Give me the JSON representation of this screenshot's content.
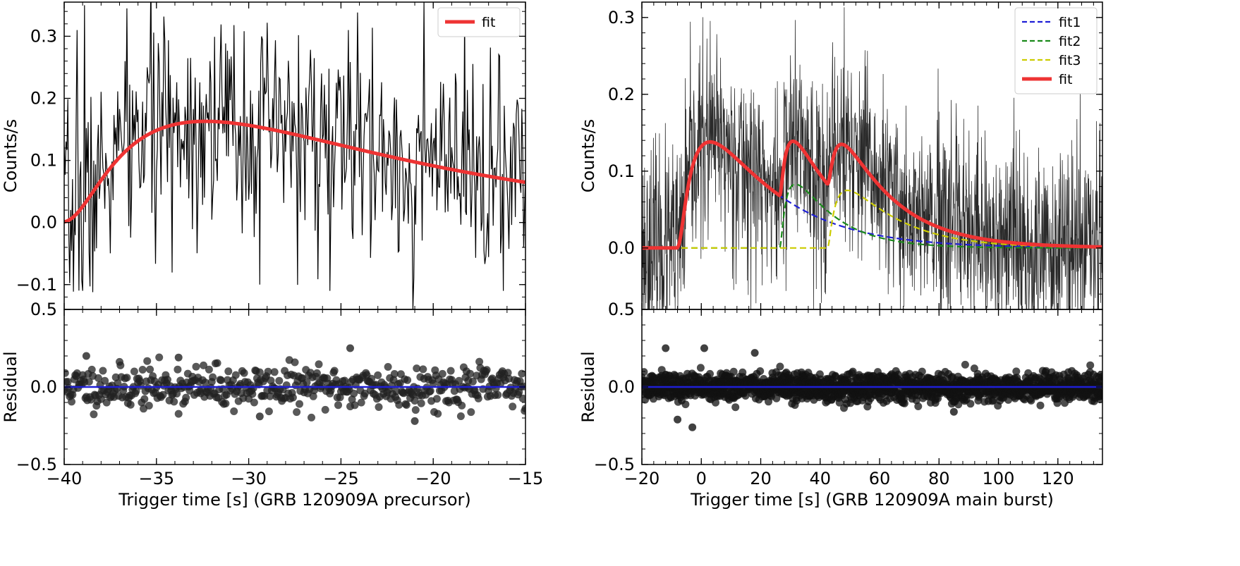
{
  "chart_data": [
    {
      "type": "line",
      "panel": "left-top",
      "ylabel": "Counts/s",
      "xlim": [
        -40,
        -15
      ],
      "ylim": [
        -0.14,
        0.355
      ],
      "yticks": [
        -0.1,
        0.0,
        0.1,
        0.2,
        0.3
      ],
      "ytick_labels": [
        "−0.1",
        "0.0",
        "0.1",
        "0.2",
        "0.3"
      ],
      "legend": {
        "position": "top-right",
        "entries": [
          {
            "label": "fit",
            "color": "#ee3333",
            "style": "solid"
          }
        ]
      },
      "noise": {
        "color": "#000000",
        "x_start": -40,
        "x_end": -15,
        "step": 0.05,
        "seed": 7,
        "sigma": 0.085
      },
      "spikes": [
        {
          "x": -39.3,
          "y": 0.31
        },
        {
          "x": -38.9,
          "y": 0.35
        },
        {
          "x": -36.7,
          "y": 0.26
        },
        {
          "x": -35.5,
          "y": 0.25
        },
        {
          "x": -32.1,
          "y": 0.26
        },
        {
          "x": -24.6,
          "y": 0.31
        },
        {
          "x": -39.0,
          "y": -0.11
        },
        {
          "x": -29.4,
          "y": -0.1
        },
        {
          "x": -25.6,
          "y": -0.11
        },
        {
          "x": -21.1,
          "y": -0.14
        },
        {
          "x": -16.2,
          "y": -0.11
        }
      ],
      "series": [
        {
          "name": "fit",
          "color": "#ee3333",
          "model": "pulse",
          "components": [
            {
              "A": 0.163,
              "t0": -40.9,
              "rise": 5.8,
              "decay": 12.6
            }
          ]
        }
      ]
    },
    {
      "type": "scatter",
      "panel": "left-bottom",
      "ylabel": "Residual",
      "xlabel": "Trigger time [s] (GRB 120909A precursor)",
      "xlim": [
        -40,
        -15
      ],
      "ylim": [
        -0.5,
        0.5
      ],
      "yticks": [
        -0.5,
        0.0,
        0.5
      ],
      "ytick_labels": [
        "−0.5",
        "0.0",
        "0.5"
      ],
      "xticks": [
        -40,
        -35,
        -30,
        -25,
        -20,
        -15
      ],
      "xtick_labels": [
        "−40",
        "−35",
        "−30",
        "−25",
        "−20",
        "−15"
      ],
      "zero_line_color": "#1f1fd6",
      "points": {
        "color": "#222222",
        "x_start": -40,
        "x_end": -15,
        "step": 0.05,
        "seed": 11,
        "sigma": 0.07
      },
      "outliers": [
        {
          "x": -38.8,
          "y": 0.2
        },
        {
          "x": -24.5,
          "y": 0.25
        },
        {
          "x": -21.0,
          "y": -0.22
        },
        {
          "x": -29.4,
          "y": -0.19
        },
        {
          "x": -33.8,
          "y": 0.19
        }
      ]
    },
    {
      "type": "line",
      "panel": "right-top",
      "ylabel": "Counts/s",
      "xlim": [
        -20,
        135
      ],
      "ylim": [
        -0.08,
        0.32
      ],
      "yticks": [
        0.0,
        0.1,
        0.2,
        0.3
      ],
      "ytick_labels": [
        "0.0",
        "0.1",
        "0.2",
        "0.3"
      ],
      "legend": {
        "position": "top-right",
        "entries": [
          {
            "label": "fit1",
            "color": "#1f1fd6",
            "style": "dashed"
          },
          {
            "label": "fit2",
            "color": "#1a8a1a",
            "style": "dashed"
          },
          {
            "label": "fit3",
            "color": "#cccc00",
            "style": "dashed"
          },
          {
            "label": "fit",
            "color": "#ee3333",
            "style": "solid"
          }
        ]
      },
      "noise": {
        "color": "#2a2a2a",
        "x_start": -20,
        "x_end": 135,
        "step": 0.1,
        "seed": 23,
        "sigma": 0.065
      },
      "series": [
        {
          "name": "fit1",
          "color": "#1f1fd6",
          "model": "pulse",
          "components": [
            {
              "A": 0.138,
              "t0": -9,
              "rise": 6.5,
              "decay": 22
            }
          ]
        },
        {
          "name": "fit2",
          "color": "#1a8a1a",
          "model": "pulse",
          "components": [
            {
              "A": 0.083,
              "t0": 26,
              "rise": 2.5,
              "decay": 13
            }
          ]
        },
        {
          "name": "fit3",
          "color": "#cccc00",
          "model": "pulse",
          "components": [
            {
              "A": 0.075,
              "t0": 42,
              "rise": 3,
              "decay": 17
            }
          ]
        },
        {
          "name": "fit",
          "color": "#ee3333",
          "model": "sum_of_components"
        }
      ]
    },
    {
      "type": "scatter",
      "panel": "right-bottom",
      "ylabel": "Residual",
      "xlabel": "Trigger time [s] (GRB 120909A main burst)",
      "xlim": [
        -20,
        135
      ],
      "ylim": [
        -0.5,
        0.5
      ],
      "yticks": [
        -0.5,
        0.0,
        0.5
      ],
      "ytick_labels": [
        "−0.5",
        "0.0",
        "0.5"
      ],
      "xticks": [
        -20,
        0,
        20,
        40,
        60,
        80,
        100,
        120
      ],
      "xtick_labels": [
        "−20",
        "0",
        "20",
        "40",
        "60",
        "80",
        "100",
        "120"
      ],
      "zero_line_color": "#1f1fd6",
      "points": {
        "color": "#111111",
        "x_start": -20,
        "x_end": 135,
        "step": 0.1,
        "seed": 31,
        "sigma": 0.045
      },
      "outliers": [
        {
          "x": -12,
          "y": 0.25
        },
        {
          "x": 1,
          "y": 0.25
        },
        {
          "x": 18,
          "y": 0.22
        },
        {
          "x": -8,
          "y": -0.21
        },
        {
          "x": -3,
          "y": -0.26
        },
        {
          "x": 85,
          "y": -0.16
        }
      ]
    }
  ]
}
